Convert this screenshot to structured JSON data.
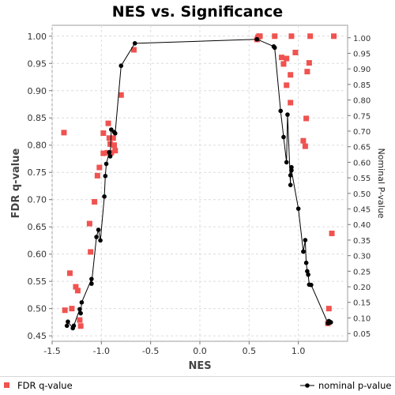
{
  "chart_data": {
    "type": "scatter",
    "title": "NES vs. Significance",
    "xlabel": "NES",
    "ylabel": "FDR q-value",
    "y2label": "Nominal P-value",
    "xlim": [
      -1.5,
      1.5
    ],
    "ylim": [
      0.44,
      1.02
    ],
    "y2lim": [
      0.025,
      1.04
    ],
    "xticks": [
      "-1.5",
      "-1.0",
      "-0.5",
      "0.0",
      "0.5",
      "1.0"
    ],
    "yticks": [
      "0.45",
      "0.50",
      "0.55",
      "0.60",
      "0.65",
      "0.70",
      "0.75",
      "0.80",
      "0.85",
      "0.90",
      "0.95",
      "1.00"
    ],
    "y2ticks": [
      "0.05",
      "0.10",
      "0.15",
      "0.20",
      "0.25",
      "0.30",
      "0.35",
      "0.40",
      "0.45",
      "0.50",
      "0.55",
      "0.60",
      "0.65",
      "0.70",
      "0.75",
      "0.80",
      "0.85",
      "0.90",
      "0.95",
      "1.00"
    ],
    "grid": true,
    "legend_position": "bottom",
    "series": [
      {
        "name": "FDR q-value",
        "axis": "left",
        "marker": "square",
        "color": "#ef5350",
        "points": [
          [
            -1.38,
            0.823
          ],
          [
            -1.37,
            0.497
          ],
          [
            -1.32,
            0.565
          ],
          [
            -1.3,
            0.5
          ],
          [
            -1.26,
            0.54
          ],
          [
            -1.24,
            0.533
          ],
          [
            -1.22,
            0.479
          ],
          [
            -1.21,
            0.468
          ],
          [
            -1.12,
            0.656
          ],
          [
            -1.11,
            0.604
          ],
          [
            -1.07,
            0.696
          ],
          [
            -1.04,
            0.744
          ],
          [
            -1.02,
            0.759
          ],
          [
            -0.98,
            0.822
          ],
          [
            -0.98,
            0.785
          ],
          [
            -0.94,
            0.786
          ],
          [
            -0.93,
            0.84
          ],
          [
            -0.92,
            0.813
          ],
          [
            -0.91,
            0.802
          ],
          [
            -0.9,
            0.786
          ],
          [
            -0.88,
            0.813
          ],
          [
            -0.87,
            0.8
          ],
          [
            -0.86,
            0.79
          ],
          [
            -0.8,
            0.892
          ],
          [
            -0.67,
            0.975
          ],
          [
            0.58,
            0.994
          ],
          [
            0.59,
            0.998
          ],
          [
            0.6,
            1.0
          ],
          [
            0.61,
            1.0
          ],
          [
            0.76,
            1.0
          ],
          [
            0.83,
            0.961
          ],
          [
            0.85,
            0.949
          ],
          [
            0.88,
            0.959
          ],
          [
            0.88,
            0.91
          ],
          [
            0.92,
            0.929
          ],
          [
            0.92,
            0.878
          ],
          [
            0.93,
            1.0
          ],
          [
            0.97,
            0.97
          ],
          [
            1.05,
            0.808
          ],
          [
            1.07,
            0.798
          ],
          [
            1.08,
            0.849
          ],
          [
            1.09,
            0.935
          ],
          [
            1.11,
            0.951
          ],
          [
            1.12,
            1.0
          ],
          [
            1.3,
            0.473
          ],
          [
            1.31,
            0.5
          ],
          [
            1.34,
            0.638
          ],
          [
            1.36,
            1.0
          ]
        ]
      },
      {
        "name": "nominal p-value",
        "axis": "right",
        "marker": "circle-line",
        "color": "#000000",
        "points": [
          [
            -1.35,
            0.075
          ],
          [
            -1.34,
            0.088
          ],
          [
            -1.29,
            0.067
          ],
          [
            -1.28,
            0.075
          ],
          [
            -1.22,
            0.128
          ],
          [
            -1.21,
            0.115
          ],
          [
            -1.2,
            0.15
          ],
          [
            -1.1,
            0.225
          ],
          [
            -1.1,
            0.21
          ],
          [
            -1.05,
            0.36
          ],
          [
            -1.03,
            0.383
          ],
          [
            -1.01,
            0.349
          ],
          [
            -0.97,
            0.49
          ],
          [
            -0.96,
            0.556
          ],
          [
            -0.95,
            0.595
          ],
          [
            -0.92,
            0.632
          ],
          [
            -0.91,
            0.619
          ],
          [
            -0.9,
            0.705
          ],
          [
            -0.87,
            0.697
          ],
          [
            -0.86,
            0.693
          ],
          [
            -0.8,
            0.91
          ],
          [
            -0.66,
            0.982
          ],
          [
            0.58,
            0.995
          ],
          [
            0.75,
            0.972
          ],
          [
            0.76,
            0.968
          ],
          [
            0.82,
            0.765
          ],
          [
            0.85,
            0.681
          ],
          [
            0.88,
            0.6
          ],
          [
            0.89,
            0.753
          ],
          [
            0.92,
            0.527
          ],
          [
            0.92,
            0.558
          ],
          [
            0.93,
            0.584
          ],
          [
            0.93,
            0.574
          ],
          [
            1.0,
            0.451
          ],
          [
            1.05,
            0.313
          ],
          [
            1.07,
            0.35
          ],
          [
            1.08,
            0.277
          ],
          [
            1.09,
            0.25
          ],
          [
            1.1,
            0.239
          ],
          [
            1.11,
            0.207
          ],
          [
            1.13,
            0.206
          ],
          [
            1.3,
            0.083
          ],
          [
            1.31,
            0.09
          ],
          [
            1.32,
            0.085
          ],
          [
            1.33,
            0.086
          ]
        ]
      }
    ]
  }
}
